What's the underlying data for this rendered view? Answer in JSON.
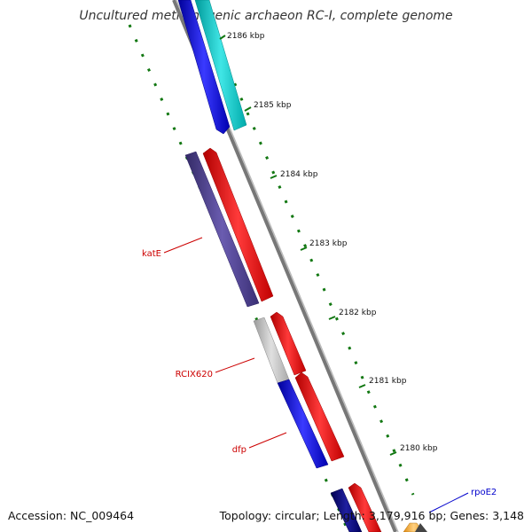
{
  "title": "Uncultured methanogenic archaeon RC-I, complete genome",
  "footer": {
    "accession": "Accession: NC_009464",
    "summary": "Topology: circular; Length: 3,179,916 bp; Genes: 3,148"
  },
  "ticks": [
    {
      "label": "2186 kbp",
      "kbp": 2186
    },
    {
      "label": "2185 kbp",
      "kbp": 2185
    },
    {
      "label": "2184 kbp",
      "kbp": 2184
    },
    {
      "label": "2183 kbp",
      "kbp": 2183
    },
    {
      "label": "2182 kbp",
      "kbp": 2182
    },
    {
      "label": "2181 kbp",
      "kbp": 2181
    },
    {
      "label": "2180 kbp",
      "kbp": 2180
    }
  ],
  "gene_labels": [
    {
      "name": "katE",
      "color": "#cc0000"
    },
    {
      "name": "RCIX620",
      "color": "#cc0000"
    },
    {
      "name": "dfp",
      "color": "#cc0000"
    },
    {
      "name": "rpoE2",
      "color": "#0000cc"
    }
  ],
  "colors": {
    "backbone": "#888888",
    "cds_forward": "#ff0000",
    "cds_reverse": "#0000ff",
    "cyan_feature": "#00cccc",
    "purple_feature": "#4b3f8a",
    "gray_feature": "#c0c0c0",
    "navy_feature": "#000080",
    "orange_feature": "#ffb84d",
    "tick": "#117711"
  }
}
